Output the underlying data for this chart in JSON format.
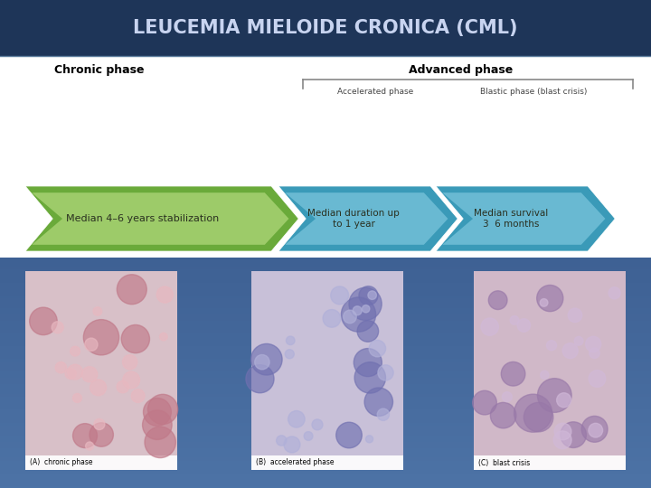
{
  "title": "LEUCEMIA MIELOIDE CRONICA (CML)",
  "title_color": "#c8d4f0",
  "bg_dark": "#1e3a5c",
  "bg_mid": "#2a5080",
  "bg_bottom": "#4a78a8",
  "chronic_phase_label": "Chronic phase",
  "advanced_phase_label": "Advanced phase",
  "accelerated_phase_label": "Accelerated phase",
  "blastic_phase_label": "Blastic phase (blast crisis)",
  "arrow1_text": "Median 4–6 years stabilization",
  "arrow2_text": "Median duration up\nto 1 year",
  "arrow3_text": "Median survival\n3  6 months",
  "img_label_1": "(A)  chronic phase",
  "img_label_2": "(B)  accelerated phase",
  "img_label_3": "(C)  blast crisis",
  "green_dark": "#6aaa3a",
  "green_light": "#c8e890",
  "blue_dark": "#3a9ab8",
  "blue_light": "#90d4e8"
}
